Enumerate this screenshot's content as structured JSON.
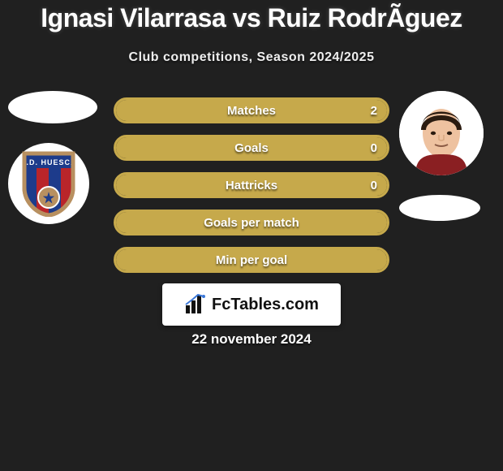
{
  "title": "Ignasi Vilarrasa vs Ruiz RodrÃ­guez",
  "subtitle": "Club competitions, Season 2024/2025",
  "date": "22 november 2024",
  "logo": {
    "brand": "Fc",
    "rest": "Tables.com"
  },
  "palette": {
    "crest_border": "#b89060",
    "crest_blue": "#1d3b8b",
    "crest_red": "#b9252a",
    "face_skin": "#eec2a0",
    "face_hair": "#2a1b10"
  },
  "bars": [
    {
      "name": "matches",
      "label": "Matches",
      "value": "2",
      "fill_pct": 100,
      "border_color": "#c6a94b",
      "fill_color": "#c6a94b"
    },
    {
      "name": "goals",
      "label": "Goals",
      "value": "0",
      "fill_pct": 100,
      "border_color": "#c6a94b",
      "fill_color": "#c6a94b"
    },
    {
      "name": "hattricks",
      "label": "Hattricks",
      "value": "0",
      "fill_pct": 100,
      "border_color": "#c6a94b",
      "fill_color": "#c6a94b"
    },
    {
      "name": "goals-per-match",
      "label": "Goals per match",
      "value": "",
      "fill_pct": 100,
      "border_color": "#c6a94b",
      "fill_color": "#c6a94b"
    },
    {
      "name": "min-per-goal",
      "label": "Min per goal",
      "value": "",
      "fill_pct": 100,
      "border_color": "#c6a94b",
      "fill_color": "#c6a94b"
    }
  ]
}
